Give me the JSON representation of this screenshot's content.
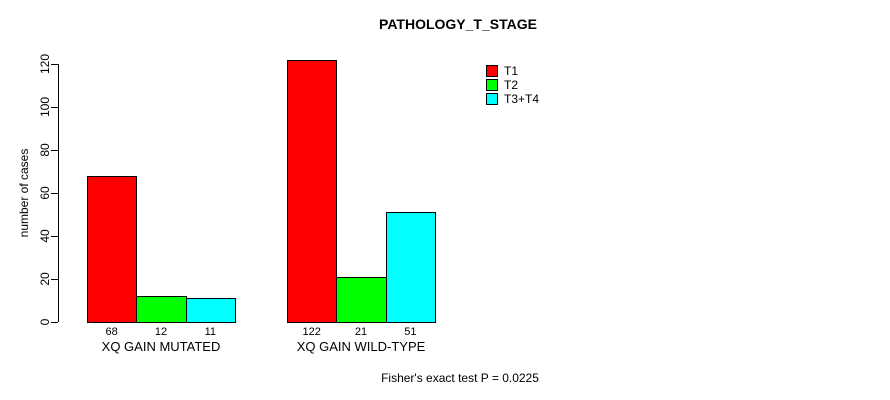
{
  "chart_data": {
    "type": "bar",
    "title": "PATHOLOGY_T_STAGE",
    "ylabel": "number of cases",
    "xlabel": "",
    "categories": [
      "XQ GAIN MUTATED",
      "XQ GAIN WILD-TYPE"
    ],
    "series": [
      {
        "name": "T1",
        "color": "#FF0000",
        "values": [
          68,
          122
        ]
      },
      {
        "name": "T2",
        "color": "#00FF00",
        "values": [
          12,
          21
        ]
      },
      {
        "name": "T3+T4",
        "color": "#00FFFF",
        "values": [
          11,
          51
        ]
      }
    ],
    "bar_value_labels": [
      [
        68,
        12,
        11
      ],
      [
        122,
        21,
        51
      ]
    ],
    "ylim": [
      0,
      120
    ],
    "yticks": [
      0,
      20,
      40,
      60,
      80,
      100,
      120
    ],
    "grid": false,
    "legend_position": "top-right",
    "annotation": "Fisher's exact test P = 0.0225"
  },
  "colors": {
    "axis": "#000000",
    "background": "#FFFFFF",
    "text": "#000000"
  }
}
